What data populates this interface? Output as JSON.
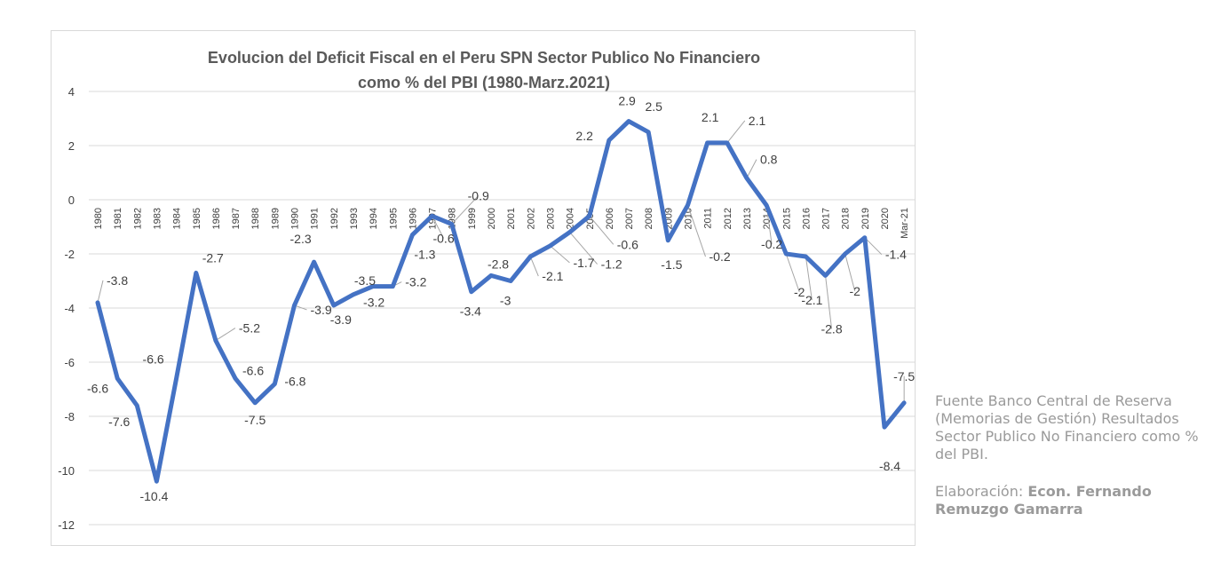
{
  "chart_data": {
    "type": "line",
    "title_lines": [
      "Evolucion del Deficit Fiscal en el Peru SPN Sector Publico No Financiero",
      "como % del PBI (1980-Marz.2021)"
    ],
    "categories": [
      "1980",
      "1981",
      "1982",
      "1983",
      "1984",
      "1985",
      "1986",
      "1987",
      "1988",
      "1989",
      "1990",
      "1991",
      "1992",
      "1993",
      "1994",
      "1995",
      "1996",
      "1997",
      "1998",
      "1999",
      "2000",
      "2001",
      "2002",
      "2003",
      "2004",
      "2005",
      "2006",
      "2007",
      "2008",
      "2009",
      "2010",
      "2011",
      "2012",
      "2013",
      "2014",
      "2015",
      "2016",
      "2017",
      "2018",
      "2019",
      "2020",
      "Mar-21"
    ],
    "values": [
      -3.8,
      -6.6,
      -7.6,
      -10.4,
      -6.6,
      -2.7,
      -5.2,
      -6.6,
      -7.5,
      -6.8,
      -3.9,
      -2.3,
      -3.9,
      -3.5,
      -3.2,
      -3.2,
      -1.3,
      -0.6,
      -0.9,
      -3.4,
      -2.8,
      -3,
      -2.1,
      -1.7,
      -1.2,
      -0.6,
      2.2,
      2.9,
      2.5,
      -1.5,
      -0.2,
      2.1,
      2.1,
      0.8,
      -0.2,
      -2,
      -2.1,
      -2.8,
      -2,
      -1.4,
      -8.4,
      -7.5
    ],
    "data_labels": [
      "-3.8",
      "-6.6",
      "-7.6",
      "-10.4",
      "-6.6",
      "-2.7",
      "-5.2",
      "-6.6",
      "-7.5",
      "-6.8",
      "-3.9",
      "-2.3",
      "-3.9",
      "-3.5",
      "-3.2",
      "-3.2",
      "-1.3",
      "-0.6",
      "-0.9",
      "-3.4",
      "-2.8",
      "-3",
      "-2.1",
      "-1.7",
      "-1.2",
      "-0.6",
      "2.2",
      "2.9",
      "2.5",
      "-1.5",
      "-0.2",
      "2.1",
      "2.1",
      "0.8",
      "-0.2",
      "-2",
      "-2.1",
      "-2.8",
      "-2",
      "-1.4",
      "-8.4",
      "-7.5"
    ],
    "ylim": [
      -12,
      4
    ],
    "yticks": [
      4,
      2,
      0,
      -2,
      -4,
      -6,
      -8,
      -10,
      -12
    ],
    "ytick_labels": [
      "4",
      "2",
      "0",
      "-2",
      "-4",
      "-6",
      "-8",
      "-10",
      "-12"
    ],
    "grid": true,
    "line_color": "#4472c4",
    "grid_color": "#d9d9d9"
  },
  "source": {
    "text": "Fuente Banco Central de Reserva (Memorias de Gestión) Resultados Sector Publico No Financiero como % del PBI.",
    "credit_prefix": "Elaboración: ",
    "credit_name": "Econ. Fernando Remuzgo Gamarra"
  }
}
